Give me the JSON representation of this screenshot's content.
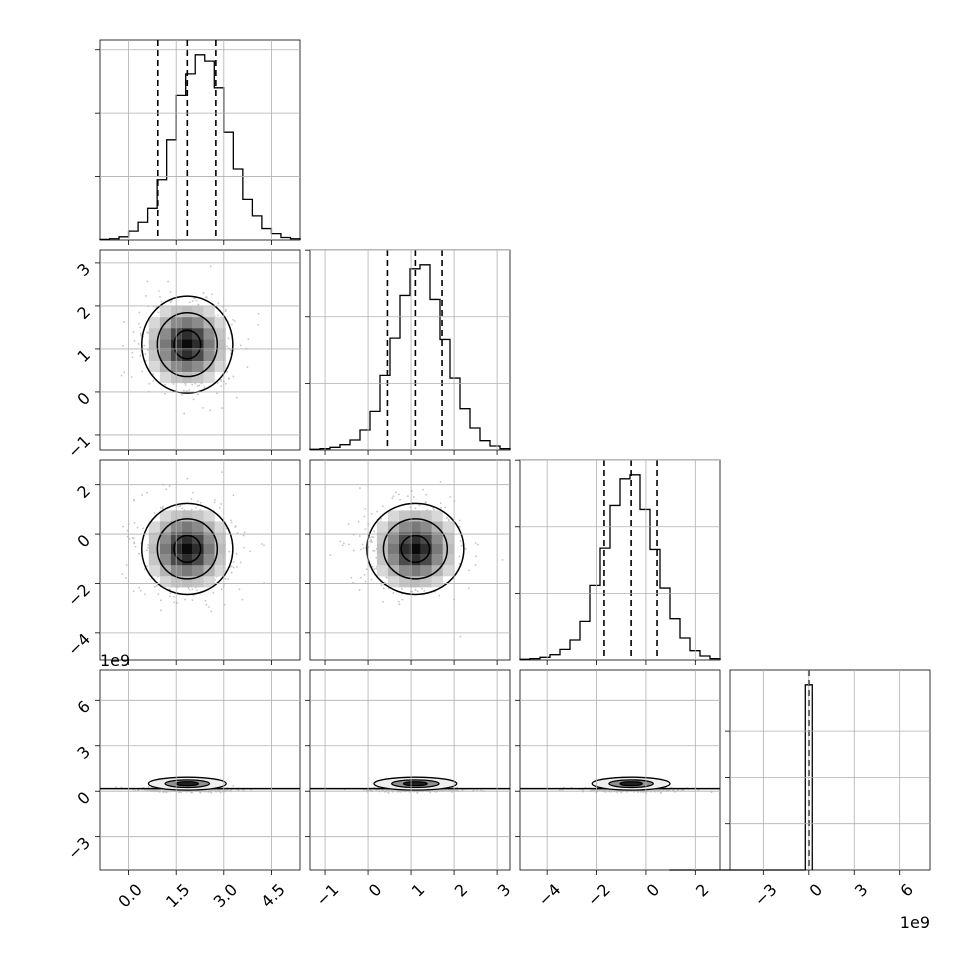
{
  "chart_data": {
    "type": "corner",
    "grid": true,
    "params": [
      {
        "lim": [
          -0.9,
          5.4
        ],
        "ticks": [
          0.0,
          1.5,
          3.0,
          4.5
        ],
        "tick_labels": [
          "0.0",
          "1.5",
          "3.0",
          "4.5"
        ],
        "center": 1.85,
        "sigma": 0.7,
        "quantiles": [
          0.92,
          1.85,
          2.75
        ]
      },
      {
        "lim": [
          -1.35,
          3.3
        ],
        "ticks": [
          -1,
          0,
          1,
          2,
          3
        ],
        "tick_labels": [
          "−1",
          "0",
          "1",
          "2",
          "3"
        ],
        "center": 1.1,
        "sigma": 0.55,
        "quantiles": [
          0.45,
          1.1,
          1.72
        ]
      },
      {
        "lim": [
          -5.1,
          3.0
        ],
        "ticks": [
          -4,
          -2,
          0,
          2
        ],
        "tick_labels": [
          "−4",
          "−2",
          "0",
          "2"
        ],
        "center": -0.6,
        "sigma": 0.9,
        "quantiles": [
          -1.7,
          -0.6,
          0.45
        ]
      },
      {
        "lim": [
          -5.2,
          8.0
        ],
        "ticks": [
          -3,
          0,
          3,
          6
        ],
        "tick_labels": [
          "−3",
          "0",
          "3",
          "6"
        ],
        "offset_label": "1e9",
        "center": 0.3,
        "sigma": 0.3,
        "quantiles": [
          0.0,
          0.0,
          0.0
        ]
      }
    ],
    "histograms": [
      [
        1,
        2,
        5,
        14,
        28,
        50,
        95,
        158,
        228,
        262,
        292,
        282,
        240,
        170,
        112,
        64,
        38,
        18,
        10,
        4,
        2
      ],
      [
        1,
        2,
        4,
        8,
        15,
        30,
        58,
        112,
        168,
        232,
        272,
        278,
        226,
        166,
        108,
        62,
        33,
        14,
        6,
        2
      ],
      [
        1,
        2,
        4,
        8,
        16,
        30,
        58,
        112,
        168,
        232,
        272,
        278,
        226,
        166,
        108,
        62,
        33,
        14,
        6,
        2
      ],
      [
        0,
        0,
        0,
        0,
        0,
        0,
        0,
        0,
        0,
        0,
        0,
        0,
        0,
        0,
        0,
        0,
        0,
        0,
        0,
        0,
        0,
        0,
        0,
        0,
        0,
        0,
        0,
        0,
        0,
        0,
        0,
        0,
        0,
        0,
        0,
        0,
        0,
        0,
        0,
        1000,
        1000
      ]
    ],
    "hist_y_ticks": [
      [
        100,
        200,
        300
      ],
      [
        100,
        200,
        300
      ],
      [
        100,
        200,
        300
      ],
      [
        250,
        500,
        750
      ]
    ],
    "contour_levels": [
      0.9,
      0.6,
      0.3
    ],
    "scatter_points_per_panel": 420
  }
}
